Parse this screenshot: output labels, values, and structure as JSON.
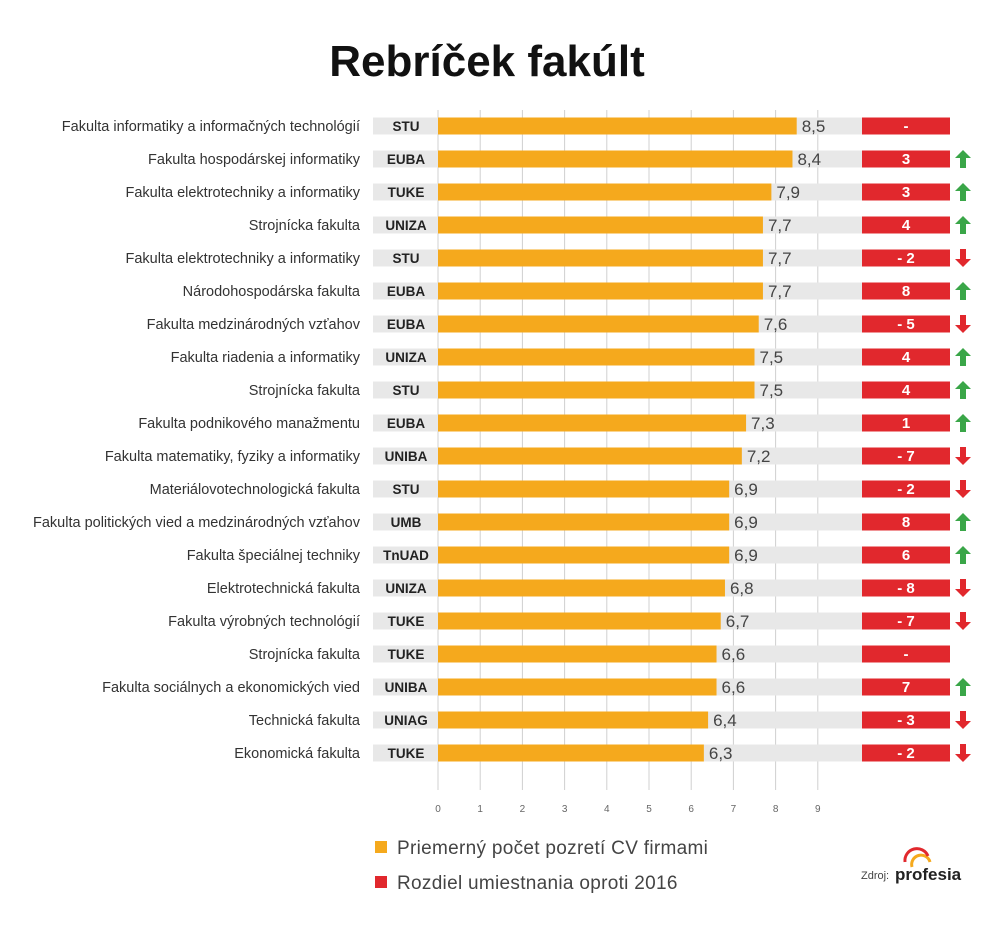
{
  "chart_data": {
    "type": "bar",
    "title": "Rebríček fakúlt",
    "x_ticks": [
      "0",
      "1",
      "2",
      "3",
      "4",
      "5",
      "6",
      "7",
      "8",
      "9"
    ],
    "xlim": [
      0,
      10
    ],
    "grid": true,
    "legend_position": "bottom-left",
    "rows": [
      {
        "faculty": "Fakulta informatiky a informačných technológií",
        "university": "STU",
        "value": 8.5,
        "value_label": "8,5",
        "rank_change": "-",
        "direction": "none"
      },
      {
        "faculty": "Fakulta hospodárskej informatiky",
        "university": "EUBA",
        "value": 8.4,
        "value_label": "8,4",
        "rank_change": "3",
        "direction": "up"
      },
      {
        "faculty": "Fakulta elektrotechniky a informatiky",
        "university": "TUKE",
        "value": 7.9,
        "value_label": "7,9",
        "rank_change": "3",
        "direction": "up"
      },
      {
        "faculty": "Strojnícka fakulta",
        "university": "UNIZA",
        "value": 7.7,
        "value_label": "7,7",
        "rank_change": "4",
        "direction": "up"
      },
      {
        "faculty": "Fakulta elektrotechniky a informatiky",
        "university": "STU",
        "value": 7.7,
        "value_label": "7,7",
        "rank_change": "- 2",
        "direction": "down"
      },
      {
        "faculty": "Národohospodárska fakulta",
        "university": "EUBA",
        "value": 7.7,
        "value_label": "7,7",
        "rank_change": "8",
        "direction": "up"
      },
      {
        "faculty": "Fakulta medzinárodných vzťahov",
        "university": "EUBA",
        "value": 7.6,
        "value_label": "7,6",
        "rank_change": "- 5",
        "direction": "down"
      },
      {
        "faculty": "Fakulta riadenia a informatiky",
        "university": "UNIZA",
        "value": 7.5,
        "value_label": "7,5",
        "rank_change": "4",
        "direction": "up"
      },
      {
        "faculty": "Strojnícka fakulta",
        "university": "STU",
        "value": 7.5,
        "value_label": "7,5",
        "rank_change": "4",
        "direction": "up"
      },
      {
        "faculty": "Fakulta podnikového manažmentu",
        "university": "EUBA",
        "value": 7.3,
        "value_label": "7,3",
        "rank_change": "1",
        "direction": "up"
      },
      {
        "faculty": "Fakulta matematiky, fyziky a informatiky",
        "university": "UNIBA",
        "value": 7.2,
        "value_label": "7,2",
        "rank_change": "- 7",
        "direction": "down"
      },
      {
        "faculty": "Materiálovotechnologická fakulta",
        "university": "STU",
        "value": 6.9,
        "value_label": "6,9",
        "rank_change": "- 2",
        "direction": "down"
      },
      {
        "faculty": "Fakulta politických vied a medzinárodných vzťahov",
        "university": "UMB",
        "value": 6.9,
        "value_label": "6,9",
        "rank_change": "8",
        "direction": "up"
      },
      {
        "faculty": "Fakulta špeciálnej techniky",
        "university": "TnUAD",
        "value": 6.9,
        "value_label": "6,9",
        "rank_change": "6",
        "direction": "up"
      },
      {
        "faculty": "Elektrotechnická fakulta",
        "university": "UNIZA",
        "value": 6.8,
        "value_label": "6,8",
        "rank_change": "- 8",
        "direction": "down"
      },
      {
        "faculty": "Fakulta výrobných technológií",
        "university": "TUKE",
        "value": 6.7,
        "value_label": "6,7",
        "rank_change": "- 7",
        "direction": "down"
      },
      {
        "faculty": "Strojnícka fakulta",
        "university": "TUKE",
        "value": 6.6,
        "value_label": "6,6",
        "rank_change": "-",
        "direction": "none"
      },
      {
        "faculty": "Fakulta sociálnych a ekonomických vied",
        "university": "UNIBA",
        "value": 6.6,
        "value_label": "6,6",
        "rank_change": "7",
        "direction": "up"
      },
      {
        "faculty": "Technická fakulta",
        "university": "UNIAG",
        "value": 6.4,
        "value_label": "6,4",
        "rank_change": "- 3",
        "direction": "down"
      },
      {
        "faculty": "Ekonomická fakulta",
        "university": "TUKE",
        "value": 6.3,
        "value_label": "6,3",
        "rank_change": "- 2",
        "direction": "down"
      }
    ],
    "legend": [
      {
        "label": "Priemerný počet pozretí CV firmami",
        "color": "#f5a91d"
      },
      {
        "label": "Rozdiel umiestnania oproti 2016",
        "color": "#e1282d"
      }
    ]
  },
  "colors": {
    "bar": "#f5a91d",
    "track": "#e8e8e8",
    "rank_box": "#e1282d",
    "arrow_up": "#3aa648",
    "arrow_down": "#e1282d",
    "uni_box": "#e8e8e8"
  },
  "source": {
    "label": "Zdroj:",
    "brand": "profesia"
  }
}
